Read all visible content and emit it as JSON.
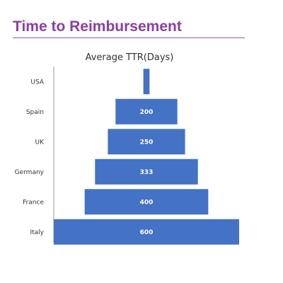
{
  "page": {
    "title": "Time to Reimbursement"
  },
  "colors": {
    "title": "#8a3fa0",
    "title_rule": "#9b59b6",
    "bar": "#4472c4",
    "data_label": "#ffffff",
    "axis_line": "#9a9a9a"
  },
  "chart_data": {
    "type": "bar",
    "orientation": "horizontal",
    "style": "funnel (bars centered)",
    "title": "Average TTR(Days)",
    "xlabel": "",
    "ylabel": "",
    "categories": [
      "USA",
      "Spain",
      "UK",
      "Germany",
      "France",
      "Italy"
    ],
    "values": [
      20,
      200,
      250,
      333,
      400,
      600
    ],
    "data_labels": [
      "",
      "200",
      "250",
      "333",
      "400",
      "600"
    ],
    "xlim": [
      0,
      600
    ],
    "grid": false,
    "legend": "none"
  }
}
